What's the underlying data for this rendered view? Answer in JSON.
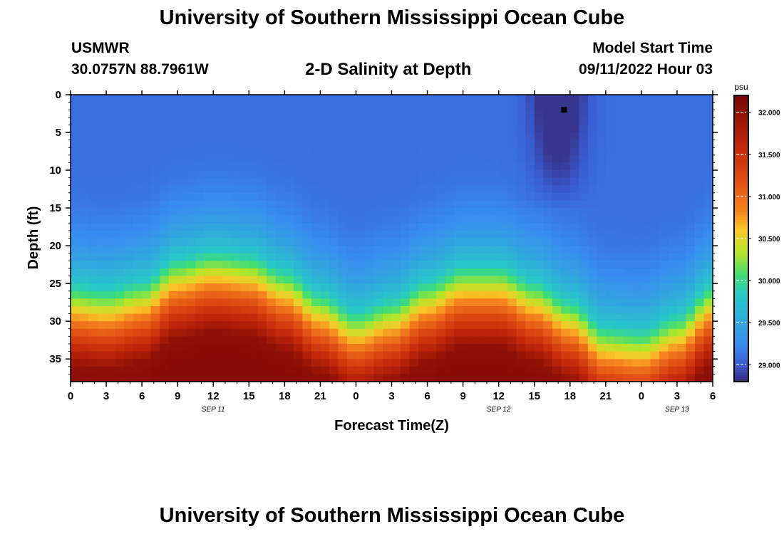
{
  "header": {
    "title": "University of Southern Mississippi Ocean Cube",
    "station": "USMWR",
    "coordinates": "30.0757N  88.7961W",
    "chart_title": "2-D Salinity at Depth",
    "model_start_label": "Model Start Time",
    "model_start_value": "09/11/2022 Hour 03"
  },
  "footer": {
    "title": "University of Southern Mississippi Ocean Cube"
  },
  "chart_data": {
    "type": "heatmap",
    "title": "2-D Salinity at Depth",
    "xlabel": "Forecast Time(Z)",
    "ylabel": "Depth (ft)",
    "x_ticks": [
      "0",
      "3",
      "6",
      "9",
      "12",
      "15",
      "18",
      "21",
      "0",
      "3",
      "6",
      "9",
      "12",
      "15",
      "18",
      "21",
      "0",
      "3",
      "6"
    ],
    "x_hours": [
      0,
      3,
      6,
      9,
      12,
      15,
      18,
      21,
      24,
      27,
      30,
      33,
      36,
      39,
      42,
      45,
      48,
      51,
      54
    ],
    "date_labels": [
      {
        "label": "SEP 11",
        "hour": 12
      },
      {
        "label": "SEP 12",
        "hour": 36
      },
      {
        "label": "SEP 13",
        "hour": 51
      }
    ],
    "y_ticks": [
      0,
      5,
      10,
      15,
      20,
      25,
      30,
      35
    ],
    "xlim": [
      0,
      54
    ],
    "ylim": [
      0,
      38
    ],
    "y_inverted": true,
    "colorbar": {
      "unit": "psu",
      "min": 28.8,
      "max": 32.2,
      "ticks": [
        "29.000",
        "29.500",
        "30.000",
        "30.500",
        "31.000",
        "31.500",
        "32.000"
      ],
      "tick_values": [
        29.0,
        29.5,
        30.0,
        30.5,
        31.0,
        31.5,
        32.0
      ]
    },
    "fresh_layer_top_depth_ft": {
      "hours": [
        0,
        3,
        6,
        9,
        12,
        15,
        18,
        21,
        24,
        27,
        30,
        33,
        36,
        39,
        42,
        45,
        48,
        51,
        54
      ],
      "depth": [
        25,
        25.5,
        24.5,
        21.5,
        20.5,
        21,
        23,
        26,
        28.5,
        27,
        24.5,
        22.5,
        22.5,
        24.5,
        27,
        30.5,
        31,
        29,
        25
      ]
    },
    "surface_salinity_psu": 29.1,
    "salinity_min_psu": 28.85,
    "salinity_max_psu": 32.1,
    "low_salinity_plume": {
      "hour_range": [
        37,
        45
      ],
      "depth_range_ft": [
        0,
        15
      ],
      "min_psu": 28.85
    },
    "marker": {
      "hour": 41.5,
      "depth": 2
    }
  }
}
